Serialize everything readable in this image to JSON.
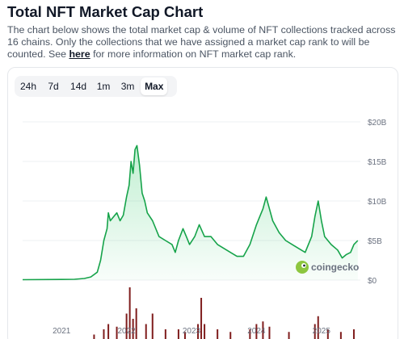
{
  "header": {
    "title": "Total NFT Market Cap Chart",
    "description_before": "The chart below shows the total market cap & volume of NFT collections tracked across 16 chains. Only the collections that we have assigned a market cap rank to will be counted. See ",
    "link_text": "here",
    "description_after": " for more information on NFT market cap rank."
  },
  "range_tabs": [
    {
      "label": "24h",
      "active": false
    },
    {
      "label": "7d",
      "active": false
    },
    {
      "label": "14d",
      "active": false
    },
    {
      "label": "1m",
      "active": false
    },
    {
      "label": "3m",
      "active": false
    },
    {
      "label": "Max",
      "active": true
    }
  ],
  "watermark": "coingecko",
  "colors": {
    "line": "#16a34a",
    "fill": "#dcfce7",
    "volume": "#7f1d1d",
    "grid": "#eef0f3",
    "axis_text": "#6b7280"
  },
  "chart_data": {
    "type": "area",
    "title": "",
    "xlabel": "",
    "ylabel": "",
    "x_ticks": [
      "2021",
      "2022",
      "2023",
      "2024",
      "2025"
    ],
    "y_ticks": [
      "$0",
      "$5B",
      "$10B",
      "$15B",
      "$20B"
    ],
    "ylim": [
      0,
      20
    ],
    "y_unit": "B USD",
    "xlim": [
      2020.4,
      2025.6
    ],
    "grid": true,
    "legend": "none",
    "series": [
      {
        "kind": "market_cap",
        "points": [
          [
            2020.4,
            0.05
          ],
          [
            2021.0,
            0.08
          ],
          [
            2021.2,
            0.1
          ],
          [
            2021.35,
            0.2
          ],
          [
            2021.45,
            0.4
          ],
          [
            2021.55,
            1.0
          ],
          [
            2021.6,
            2.5
          ],
          [
            2021.65,
            5.0
          ],
          [
            2021.7,
            6.5
          ],
          [
            2021.72,
            8.5
          ],
          [
            2021.75,
            7.5
          ],
          [
            2021.8,
            8.0
          ],
          [
            2021.85,
            8.5
          ],
          [
            2021.9,
            7.5
          ],
          [
            2021.95,
            8.2
          ],
          [
            2022.0,
            10.5
          ],
          [
            2022.04,
            12.0
          ],
          [
            2022.07,
            15.0
          ],
          [
            2022.1,
            13.5
          ],
          [
            2022.13,
            16.5
          ],
          [
            2022.16,
            17.0
          ],
          [
            2022.2,
            14.5
          ],
          [
            2022.24,
            11.0
          ],
          [
            2022.28,
            10.0
          ],
          [
            2022.32,
            8.5
          ],
          [
            2022.4,
            7.5
          ],
          [
            2022.5,
            5.5
          ],
          [
            2022.6,
            5.0
          ],
          [
            2022.7,
            4.5
          ],
          [
            2022.75,
            3.5
          ],
          [
            2022.8,
            5.0
          ],
          [
            2022.87,
            6.5
          ],
          [
            2022.92,
            5.5
          ],
          [
            2022.97,
            4.5
          ],
          [
            2023.05,
            5.5
          ],
          [
            2023.12,
            7.0
          ],
          [
            2023.2,
            5.5
          ],
          [
            2023.3,
            5.5
          ],
          [
            2023.4,
            4.5
          ],
          [
            2023.5,
            4.0
          ],
          [
            2023.6,
            3.5
          ],
          [
            2023.7,
            3.0
          ],
          [
            2023.8,
            3.0
          ],
          [
            2023.9,
            4.5
          ],
          [
            2024.0,
            7.0
          ],
          [
            2024.05,
            8.0
          ],
          [
            2024.1,
            9.0
          ],
          [
            2024.15,
            10.5
          ],
          [
            2024.2,
            9.0
          ],
          [
            2024.25,
            7.5
          ],
          [
            2024.35,
            6.0
          ],
          [
            2024.45,
            5.0
          ],
          [
            2024.55,
            4.5
          ],
          [
            2024.65,
            4.0
          ],
          [
            2024.75,
            3.5
          ],
          [
            2024.85,
            5.5
          ],
          [
            2024.9,
            8.0
          ],
          [
            2024.95,
            10.0
          ],
          [
            2025.0,
            7.5
          ],
          [
            2025.05,
            5.5
          ],
          [
            2025.15,
            4.5
          ],
          [
            2025.25,
            3.8
          ],
          [
            2025.32,
            2.8
          ],
          [
            2025.38,
            3.2
          ],
          [
            2025.45,
            3.5
          ],
          [
            2025.5,
            4.5
          ],
          [
            2025.56,
            5.0
          ]
        ]
      },
      {
        "kind": "volume",
        "points": [
          [
            2021.5,
            0.1
          ],
          [
            2021.65,
            0.2
          ],
          [
            2021.72,
            0.3
          ],
          [
            2021.85,
            0.25
          ],
          [
            2022.0,
            0.5
          ],
          [
            2022.05,
            1.0
          ],
          [
            2022.1,
            0.4
          ],
          [
            2022.15,
            0.6
          ],
          [
            2022.3,
            0.3
          ],
          [
            2022.4,
            0.5
          ],
          [
            2022.6,
            0.2
          ],
          [
            2022.8,
            0.2
          ],
          [
            2022.9,
            0.15
          ],
          [
            2023.1,
            0.3
          ],
          [
            2023.15,
            0.8
          ],
          [
            2023.2,
            0.3
          ],
          [
            2023.4,
            0.2
          ],
          [
            2023.6,
            0.15
          ],
          [
            2023.9,
            0.2
          ],
          [
            2024.0,
            0.3
          ],
          [
            2024.1,
            0.35
          ],
          [
            2024.2,
            0.25
          ],
          [
            2024.5,
            0.15
          ],
          [
            2024.9,
            0.3
          ],
          [
            2024.95,
            0.45
          ],
          [
            2025.1,
            0.2
          ],
          [
            2025.3,
            0.15
          ],
          [
            2025.5,
            0.2
          ]
        ],
        "max": 1.0
      }
    ]
  }
}
